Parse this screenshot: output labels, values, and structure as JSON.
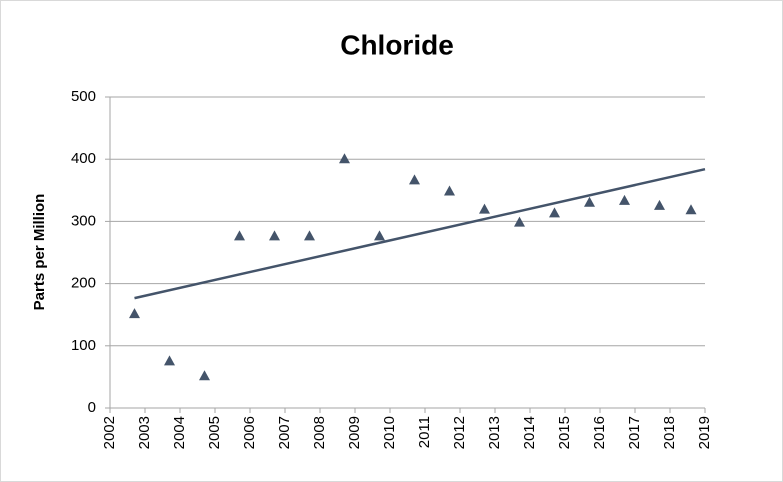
{
  "chart_data": {
    "type": "scatter",
    "title": "Chloride",
    "y_label": "Parts per Million",
    "series": [
      {
        "color": "#44546a",
        "x": [
          2002.7,
          2003.7,
          2004.7,
          2005.7,
          2006.7,
          2007.7,
          2008.7,
          2009.7,
          2010.7,
          2011.7,
          2012.7,
          2013.7,
          2014.7,
          2015.7,
          2016.7,
          2017.7,
          2018.6
        ],
        "values": [
          151,
          75,
          51,
          276,
          276,
          276,
          400,
          276,
          366,
          348,
          319,
          298,
          313,
          330,
          333,
          325,
          318
        ]
      }
    ],
    "trendline": true,
    "xlim": [
      2002,
      2019
    ],
    "xticks": [
      2002,
      2003,
      2004,
      2005,
      2006,
      2007,
      2008,
      2009,
      2010,
      2011,
      2012,
      2013,
      2014,
      2015,
      2016,
      2017,
      2018,
      2019
    ],
    "ylim": [
      0,
      500
    ],
    "yticks": [
      0,
      100,
      200,
      300,
      400,
      500
    ],
    "grid": true
  }
}
